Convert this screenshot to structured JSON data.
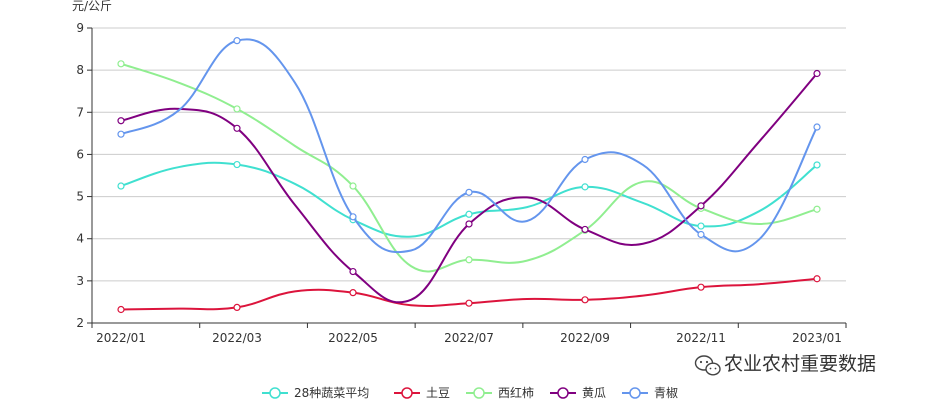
{
  "chart_data": {
    "type": "line",
    "smooth": true,
    "ylabel": "元/公斤",
    "ylim": [
      2,
      9
    ],
    "yticks": [
      2,
      3,
      4,
      5,
      6,
      7,
      8,
      9
    ],
    "grid": true,
    "legend_position": "bottom",
    "x": [
      "2022/01",
      "2022/02",
      "2022/03",
      "2022/04",
      "2022/05",
      "2022/06",
      "2022/07",
      "2022/08",
      "2022/09",
      "2022/10",
      "2022/11",
      "2022/12",
      "2023/01"
    ],
    "x_tick_labels": [
      "2022/01",
      "2022/03",
      "2022/05",
      "2022/07",
      "2022/09",
      "2022/11",
      "2023/01"
    ],
    "series": [
      {
        "name": "28种蔬菜平均",
        "color": "#40e0d0",
        "values": [
          5.25,
          5.7,
          5.76,
          5.3,
          4.45,
          4.05,
          4.58,
          4.75,
          5.23,
          4.85,
          4.3,
          4.65,
          5.75
        ]
      },
      {
        "name": "土豆",
        "color": "#dc143c",
        "values": [
          2.32,
          2.34,
          2.37,
          2.75,
          2.72,
          2.42,
          2.47,
          2.57,
          2.55,
          2.65,
          2.85,
          2.92,
          3.05
        ]
      },
      {
        "name": "西红柿",
        "color": "#90ee90",
        "values": [
          8.15,
          7.7,
          7.08,
          6.2,
          5.25,
          3.35,
          3.5,
          3.48,
          4.2,
          5.35,
          4.72,
          4.35,
          4.7
        ]
      },
      {
        "name": "黄瓜",
        "color": "#800080",
        "values": [
          6.8,
          7.08,
          6.62,
          4.8,
          3.22,
          2.55,
          4.35,
          4.98,
          4.22,
          3.88,
          4.78,
          6.3,
          7.92
        ]
      },
      {
        "name": "青椒",
        "color": "#6495ed",
        "values": [
          6.48,
          7.05,
          8.7,
          7.7,
          4.52,
          3.72,
          5.1,
          4.42,
          5.88,
          5.75,
          4.1,
          3.98,
          6.65
        ]
      }
    ],
    "markers_at": [
      "2022/01",
      "2022/03",
      "2022/05",
      "2022/07",
      "2022/09",
      "2022/11",
      "2023/01"
    ]
  },
  "watermark": {
    "text": "农业农村重要数据",
    "icon": "wechat-icon"
  }
}
